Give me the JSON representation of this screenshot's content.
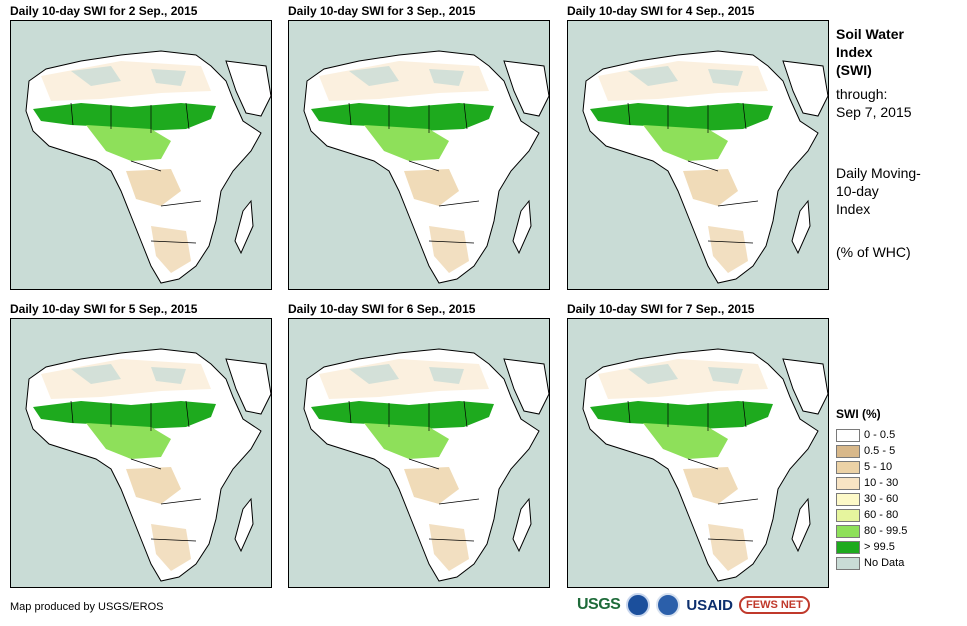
{
  "panels": [
    {
      "title": "Daily 10-day  SWI for 2  Sep., 2015"
    },
    {
      "title": "Daily 10-day  SWI for 3  Sep., 2015"
    },
    {
      "title": "Daily 10-day  SWI for 4  Sep., 2015"
    },
    {
      "title": "Daily 10-day  SWI for 5  Sep., 2015"
    },
    {
      "title": "Daily 10-day  SWI for 6  Sep., 2015"
    },
    {
      "title": "Daily 10-day  SWI for 7  Sep., 2015"
    }
  ],
  "sidebar": {
    "title_line1": "Soil Water",
    "title_line2": "Index",
    "title_line3": "(SWI)",
    "through_label": "through:",
    "through_date": "Sep 7, 2015",
    "desc_line1": "Daily Moving-",
    "desc_line2": "10-day",
    "desc_line3": "Index",
    "units": "(% of WHC)"
  },
  "legend": {
    "title": "SWI (%)",
    "items": [
      {
        "label": "0 - 0.5",
        "color": "#ffffff"
      },
      {
        "label": "0.5 - 5",
        "color": "#d8b88a"
      },
      {
        "label": "5 - 10",
        "color": "#ecd2a6"
      },
      {
        "label": "10 - 30",
        "color": "#f8e4c4"
      },
      {
        "label": "30 - 60",
        "color": "#fdf9c8"
      },
      {
        "label": "60 - 80",
        "color": "#e6f59e"
      },
      {
        "label": "80 - 99.5",
        "color": "#8ee05a"
      },
      {
        "label": "> 99.5",
        "color": "#1eaa1e"
      },
      {
        "label": "No Data",
        "color": "#c9dcd6"
      }
    ]
  },
  "credit": "Map produced by USGS/EROS",
  "logos": {
    "usgs": "USGS",
    "usaid": "USAID",
    "fews": "FEWS NET"
  }
}
